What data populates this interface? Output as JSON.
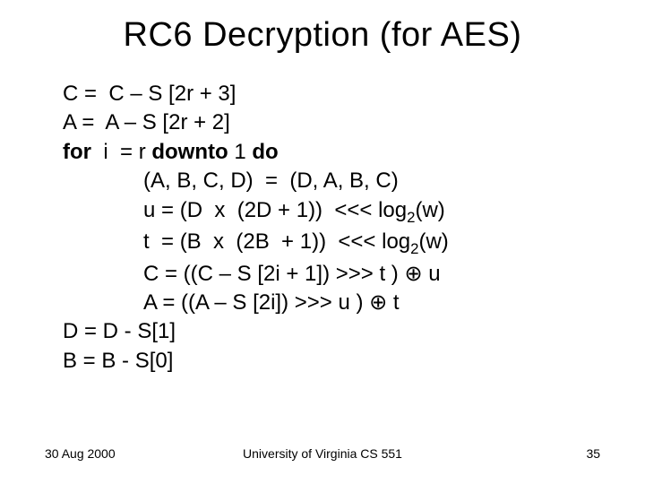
{
  "title": "RC6 Decryption (for AES)",
  "lines": {
    "l1a": "C =  C – S [2",
    "l1b": "r + 3]",
    "l2a": "A =  A – S [2",
    "l2b": "r + 2]",
    "l3_for": "for",
    "l3_mid": "  i  = r ",
    "l3_downto": "downto",
    "l3_end": " 1 ",
    "l3_do": "do",
    "l4": "(A, B, C, D)  =  (D, A, B, C)",
    "l5a": "u = (D  x  (2D + 1))  <<< log",
    "l5s": "2",
    "l5b": "(w)",
    "l6a": "t  = (B  x  (2B  + 1))  <<< log",
    "l6s": "2",
    "l6b": "(w)",
    "l7a": "C = ((C – S [2",
    "l7b": "i + 1]) >>> t ) ⊕ u",
    "l8a": "A = ((A – S [2",
    "l8b": "i]) >>> u ) ⊕ t",
    "l9": "D = D - S[1]",
    "l10": "B = B - S[0]"
  },
  "footer": {
    "date": "30 Aug 2000",
    "org": "University of Virginia CS 551",
    "page": "35"
  },
  "style": {
    "title_fontsize": 38,
    "body_fontsize": 24,
    "footer_fontsize": 14,
    "text_color": "#000000",
    "background_color": "#ffffff",
    "font_family": "Arial"
  }
}
